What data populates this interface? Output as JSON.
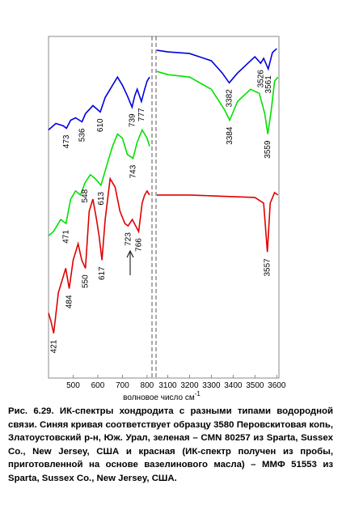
{
  "chart_data": [
    {
      "type": "line",
      "xlim": [
        400,
        820
      ],
      "ylim": [
        0,
        420
      ],
      "xticks": [
        500,
        600,
        700,
        800
      ],
      "series": [
        {
          "color": "#0000e0",
          "x": [
            400,
            430,
            460,
            473,
            490,
            510,
            536,
            550,
            580,
            610,
            630,
            660,
            680,
            700,
            720,
            739,
            750,
            760,
            777,
            790,
            800,
            810
          ],
          "values": [
            305,
            313,
            310,
            307,
            317,
            320,
            315,
            325,
            335,
            327,
            345,
            360,
            370,
            360,
            347,
            333,
            347,
            355,
            340,
            355,
            365,
            370
          ]
        },
        {
          "color": "#00e000",
          "x": [
            400,
            420,
            450,
            471,
            490,
            510,
            530,
            548,
            570,
            590,
            613,
            640,
            660,
            680,
            700,
            720,
            743,
            760,
            780,
            800,
            810
          ],
          "values": [
            175,
            180,
            195,
            190,
            220,
            230,
            225,
            240,
            250,
            245,
            237,
            265,
            285,
            300,
            295,
            275,
            270,
            290,
            305,
            295,
            285
          ]
        },
        {
          "color": "#e00000",
          "x": [
            400,
            410,
            421,
            440,
            460,
            470,
            484,
            500,
            520,
            535,
            550,
            565,
            580,
            595,
            605,
            617,
            630,
            650,
            670,
            690,
            710,
            723,
            740,
            766,
            780,
            790,
            800,
            810
          ],
          "values": [
            80,
            70,
            55,
            105,
            125,
            135,
            110,
            145,
            165,
            145,
            135,
            205,
            220,
            195,
            175,
            145,
            195,
            245,
            235,
            205,
            190,
            187,
            195,
            180,
            215,
            225,
            230,
            225
          ]
        }
      ],
      "annotations": [
        {
          "series": 0,
          "x": 473
        },
        {
          "series": 0,
          "x": 536
        },
        {
          "series": 0,
          "x": 610
        },
        {
          "series": 0,
          "x": 739
        },
        {
          "series": 0,
          "x": 777
        },
        {
          "series": 1,
          "x": 471
        },
        {
          "series": 1,
          "x": 548
        },
        {
          "series": 1,
          "x": 613
        },
        {
          "series": 1,
          "x": 743
        },
        {
          "series": 2,
          "x": 421
        },
        {
          "series": 2,
          "x": 484
        },
        {
          "series": 2,
          "x": 550
        },
        {
          "series": 2,
          "x": 617
        },
        {
          "series": 2,
          "x": 723
        },
        {
          "series": 2,
          "x": 766
        }
      ]
    },
    {
      "type": "line",
      "xlim": [
        3050,
        3610
      ],
      "ylim": [
        0,
        420
      ],
      "xticks": [
        3100,
        3200,
        3300,
        3400,
        3500,
        3600
      ],
      "series": [
        {
          "color": "#0000e0",
          "x": [
            3050,
            3100,
            3200,
            3300,
            3350,
            3382,
            3420,
            3480,
            3500,
            3526,
            3540,
            3561,
            3580,
            3600
          ],
          "values": [
            403,
            401,
            399,
            390,
            375,
            363,
            375,
            390,
            395,
            387,
            393,
            380,
            400,
            405
          ]
        },
        {
          "color": "#00e000",
          "x": [
            3050,
            3100,
            3200,
            3300,
            3360,
            3384,
            3420,
            3480,
            3520,
            3545,
            3559,
            3575,
            3590,
            3605
          ],
          "values": [
            377,
            373,
            370,
            355,
            330,
            317,
            340,
            355,
            350,
            325,
            300,
            330,
            365,
            370
          ]
        },
        {
          "color": "#e00000",
          "x": [
            3050,
            3200,
            3300,
            3400,
            3500,
            3540,
            3557,
            3570,
            3590,
            3605
          ],
          "values": [
            225,
            225,
            224,
            223,
            222,
            215,
            155,
            215,
            228,
            225
          ]
        }
      ],
      "annotations": [
        {
          "series": 0,
          "x": 3382
        },
        {
          "series": 0,
          "x": 3526
        },
        {
          "series": 0,
          "x": 3561
        },
        {
          "series": 1,
          "x": 3384
        },
        {
          "series": 1,
          "x": 3559
        },
        {
          "series": 2,
          "x": 3557
        }
      ]
    }
  ],
  "axis_label": "волновое число см",
  "axis_label_superscript": "-1",
  "caption": "Рис. 6.29. ИК-спектры хондродита с разными типами водородной связи. Синяя кривая соответствует образцу 3580 Перовскитовая копь, Златоустовский р-н, Юж. Урал, зеленая – CMN 80257 из Sparta, Sussex Co., New Jersey, США и красная (ИК-спектр получен из пробы, приготовленной на основе вазелинового масла) – ММФ 51553 из Sparta, Sussex Co., New Jersey, США."
}
